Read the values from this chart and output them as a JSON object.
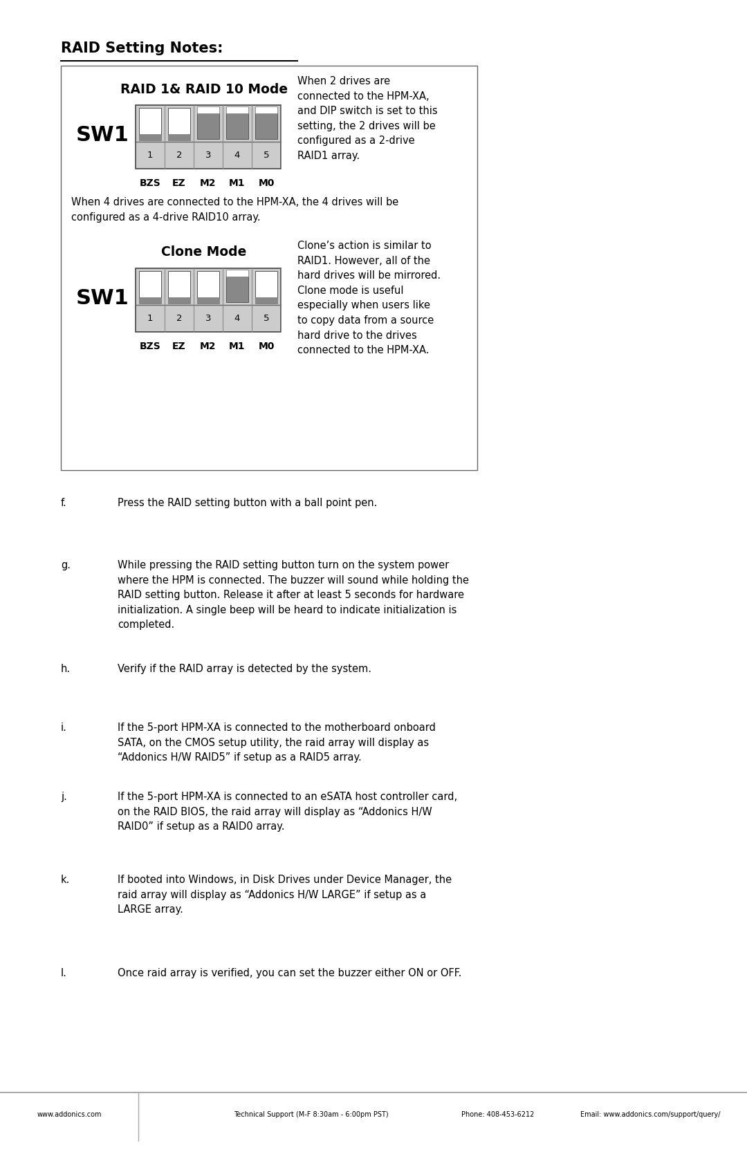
{
  "bg_color": "#ffffff",
  "title": "RAID Setting Notes:",
  "box1_title": "RAID 1& RAID 10 Mode",
  "box1_desc": "When 2 drives are\nconnected to the HPM-XA,\nand DIP switch is set to this\nsetting, the 2 drives will be\nconfigured as a 2-drive\nRAID1 array.",
  "box1_below": "When 4 drives are connected to the HPM-XA, the 4 drives will be\nconfigured as a 4-drive RAID10 array.",
  "box2_title": "Clone Mode",
  "box2_desc": "Clone’s action is similar to\nRAID1. However, all of the\nhard drives will be mirrored.\nClone mode is useful\nespecially when users like\nto copy data from a source\nhard drive to the drives\nconnected to the HPM-XA.",
  "sw_label": "SW1",
  "dip_labels": [
    "1",
    "2",
    "3",
    "4",
    "5"
  ],
  "dip_bottom_labels": [
    "BZS",
    "EZ",
    "M2",
    "M1",
    "M0"
  ],
  "raid1_dip_up": [
    true,
    true,
    false,
    false,
    false
  ],
  "clone_dip_up": [
    true,
    true,
    true,
    false,
    true
  ],
  "items": [
    [
      "f.",
      "Press the RAID setting button with a ball point pen."
    ],
    [
      "g.",
      "While pressing the RAID setting button turn on the system power\nwhere the HPM is connected. The buzzer will sound while holding the\nRAID setting button. Release it after at least 5 seconds for hardware\ninitialization. A single beep will be heard to indicate initialization is\ncompleted."
    ],
    [
      "h.",
      "Verify if the RAID array is detected by the system."
    ],
    [
      "i.",
      "If the 5-port HPM-XA is connected to the motherboard onboard\nSATA, on the CMOS setup utility, the raid array will display as\n“Addonics H/W RAID5” if setup as a RAID5 array."
    ],
    [
      "j.",
      "If the 5-port HPM-XA is connected to an eSATA host controller card,\non the RAID BIOS, the raid array will display as “Addonics H/W\nRAID0” if setup as a RAID0 array."
    ],
    [
      "k.",
      "If booted into Windows, in Disk Drives under Device Manager, the\nraid array will display as “Addonics H/W LARGE” if setup as a\nLARGE array."
    ],
    [
      "l.",
      "Once raid array is verified, you can set the buzzer either ON or OFF."
    ]
  ],
  "footer_left": "www.addonics.com",
  "footer_mid": "Technical Support (M-F 8:30am - 6:00pm PST)",
  "footer_phone": "Phone: 408-453-6212",
  "footer_email": "Email: www.addonics.com/support/query/"
}
